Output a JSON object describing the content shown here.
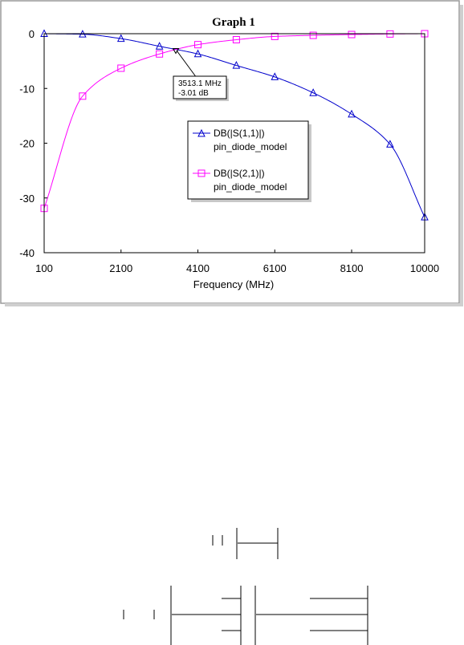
{
  "chart_data": {
    "type": "line",
    "title": "Graph 1",
    "xlabel": "Frequency (MHz)",
    "ylabel": "",
    "xlim": [
      100,
      10000
    ],
    "ylim": [
      -40,
      0
    ],
    "xticks": [
      100,
      2100,
      4100,
      6100,
      8100,
      10000
    ],
    "yticks": [
      0,
      -10,
      -20,
      -30,
      -40
    ],
    "grid": false,
    "legend_position": "center",
    "series": [
      {
        "name": "DB(|S(1,1)|)",
        "subname": "pin_diode_model",
        "color": "#0000cc",
        "marker": "triangle",
        "x": [
          100,
          1100,
          2100,
          3100,
          4100,
          5100,
          6100,
          7100,
          8100,
          9100,
          10000
        ],
        "y": [
          0.0,
          -0.1,
          -0.9,
          -2.3,
          -3.7,
          -5.8,
          -7.9,
          -10.8,
          -14.7,
          -20.2,
          -33.5
        ]
      },
      {
        "name": "DB(|S(2,1)|)",
        "subname": "pin_diode_model",
        "color": "#ff00ff",
        "marker": "square",
        "x": [
          100,
          1100,
          2100,
          3100,
          4100,
          5100,
          6100,
          7100,
          8100,
          9100,
          10000
        ],
        "y": [
          -31.9,
          -11.4,
          -6.3,
          -3.7,
          -2.0,
          -1.1,
          -0.5,
          -0.3,
          -0.15,
          -0.05,
          0.0
        ]
      }
    ],
    "annotations": [
      {
        "x": 3513.1,
        "y": -3.01,
        "lines": [
          "3513.1 MHz",
          "-3.01 dB"
        ]
      }
    ]
  }
}
